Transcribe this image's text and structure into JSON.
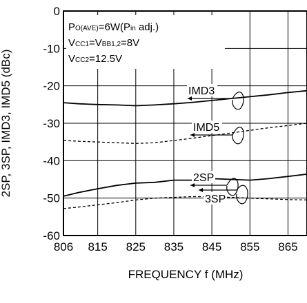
{
  "chart_data": {
    "type": "line",
    "xlabel": "FREQUENCY  f (MHz)",
    "ylabel": "2SP, 3SP, IMD3, IMD5  (dBc)",
    "xlim": [
      806,
      870
    ],
    "ylim": [
      -60,
      0
    ],
    "x_ticks": [
      806,
      815,
      825,
      835,
      845,
      855,
      865
    ],
    "x_tick_labels": [
      "806",
      "815",
      "825",
      "835",
      "845",
      "855",
      "865"
    ],
    "y_ticks": [
      0,
      -10,
      -20,
      -30,
      -40,
      -50,
      -60
    ],
    "y_tick_labels": [
      "0",
      "-10",
      "-20",
      "-30",
      "-40",
      "-50",
      "-60"
    ],
    "grid": true,
    "conditions": [
      {
        "base": "P",
        "sub": "O(AVE)",
        "rest": "=6W(P",
        "sub2": "in",
        "rest2": " adj.)"
      },
      {
        "base": "V",
        "sub": "CC1",
        "rest": "=V",
        "sub2": "BB1,2",
        "rest2": "=8V"
      },
      {
        "base": "V",
        "sub": "CC2",
        "rest": "=12.5V",
        "sub2": "",
        "rest2": ""
      }
    ],
    "series": [
      {
        "name": "IMD3",
        "style": "solid",
        "x": [
          806,
          810,
          815,
          820,
          825,
          830,
          835,
          840,
          845,
          850,
          855,
          860,
          865,
          870
        ],
        "values": [
          -24.5,
          -24.8,
          -25.0,
          -25.1,
          -25.3,
          -25.1,
          -24.8,
          -24.4,
          -23.9,
          -23.4,
          -22.9,
          -22.4,
          -21.8,
          -21.3
        ]
      },
      {
        "name": "IMD5",
        "style": "dashed",
        "x": [
          806,
          810,
          815,
          820,
          825,
          830,
          835,
          840,
          845,
          850,
          855,
          860,
          865,
          870
        ],
        "values": [
          -34.6,
          -34.8,
          -35.0,
          -35.2,
          -35.4,
          -35.2,
          -34.6,
          -34.0,
          -33.3,
          -32.6,
          -31.9,
          -31.2,
          -30.6,
          -30.0
        ]
      },
      {
        "name": "2SP",
        "style": "solid",
        "x": [
          806,
          810,
          815,
          820,
          825,
          830,
          835,
          840,
          845,
          850,
          855,
          860,
          865,
          870
        ],
        "values": [
          -49.5,
          -48.5,
          -47.5,
          -46.6,
          -46.0,
          -45.8,
          -45.2,
          -45.2,
          -44.8,
          -45.0,
          -45.2,
          -44.8,
          -44.2,
          -43.6
        ]
      },
      {
        "name": "3SP",
        "style": "dashed",
        "x": [
          806,
          810,
          815,
          820,
          825,
          830,
          835,
          840,
          845,
          850,
          855,
          860,
          865,
          870
        ],
        "values": [
          -52.8,
          -52.4,
          -51.8,
          -51.2,
          -50.5,
          -50.0,
          -49.8,
          -49.6,
          -49.6,
          -49.8,
          -50.0,
          -50.2,
          -50.4,
          -50.5
        ]
      }
    ]
  }
}
